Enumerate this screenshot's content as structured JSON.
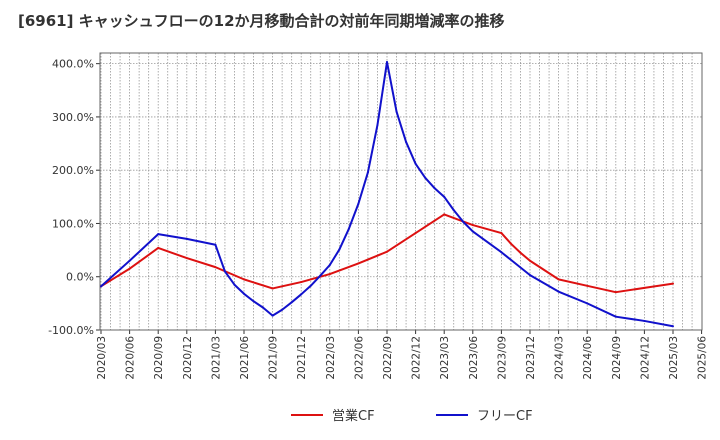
{
  "chart_data": {
    "type": "line",
    "title": "[6961]  キャッシュフローの12か月移動合計の対前年同期増減率の推移",
    "xlabel": "",
    "ylabel": "",
    "ylim": [
      -100,
      420
    ],
    "yticks": [
      -100,
      0,
      100,
      200,
      300,
      400
    ],
    "ytick_labels": [
      "-100.0%",
      "0.0%",
      "100.0%",
      "200.0%",
      "300.0%",
      "400.0%"
    ],
    "x_tick_labels": [
      "2020/03",
      "2020/06",
      "2020/09",
      "2020/12",
      "2021/03",
      "2021/06",
      "2021/09",
      "2021/12",
      "2022/03",
      "2022/06",
      "2022/09",
      "2022/12",
      "2023/03",
      "2023/06",
      "2023/09",
      "2023/12",
      "2024/03",
      "2024/06",
      "2024/09",
      "2024/12",
      "2025/03",
      "2025/06"
    ],
    "grid": true,
    "legend_position": "bottom",
    "series": [
      {
        "name": "営業CF",
        "color": "#dd1111",
        "points": [
          [
            "2020/03",
            -18
          ],
          [
            "2020/06",
            15
          ],
          [
            "2020/09",
            54
          ],
          [
            "2020/12",
            35
          ],
          [
            "2021/03",
            18
          ],
          [
            "2021/06",
            -5
          ],
          [
            "2021/09",
            -22
          ],
          [
            "2021/12",
            -10
          ],
          [
            "2022/03",
            5
          ],
          [
            "2022/06",
            25
          ],
          [
            "2022/09",
            47
          ],
          [
            "2022/12",
            82
          ],
          [
            "2023/03",
            117
          ],
          [
            "2023/06",
            97
          ],
          [
            "2023/09",
            82
          ],
          [
            "2023/10",
            62
          ],
          [
            "2023/11",
            45
          ],
          [
            "2023/12",
            30
          ],
          [
            "2024/03",
            -5
          ],
          [
            "2024/06",
            -17
          ],
          [
            "2024/09",
            -29
          ],
          [
            "2024/12",
            -21
          ],
          [
            "2025/03",
            -13
          ]
        ]
      },
      {
        "name": "フリーCF",
        "color": "#1111cc",
        "points": [
          [
            "2020/03",
            -18
          ],
          [
            "2020/06",
            30
          ],
          [
            "2020/09",
            80
          ],
          [
            "2020/12",
            71
          ],
          [
            "2021/03",
            60
          ],
          [
            "2021/04",
            10
          ],
          [
            "2021/05",
            -15
          ],
          [
            "2021/06",
            -32
          ],
          [
            "2021/07",
            -46
          ],
          [
            "2021/08",
            -58
          ],
          [
            "2021/09",
            -73
          ],
          [
            "2021/10",
            -62
          ],
          [
            "2021/11",
            -48
          ],
          [
            "2021/12",
            -33
          ],
          [
            "2022/01",
            -17
          ],
          [
            "2022/02",
            2
          ],
          [
            "2022/03",
            22
          ],
          [
            "2022/04",
            51
          ],
          [
            "2022/05",
            90
          ],
          [
            "2022/06",
            137
          ],
          [
            "2022/07",
            196
          ],
          [
            "2022/08",
            285
          ],
          [
            "2022/09",
            403
          ],
          [
            "2022/10",
            310
          ],
          [
            "2022/11",
            253
          ],
          [
            "2022/12",
            212
          ],
          [
            "2023/01",
            186
          ],
          [
            "2023/02",
            166
          ],
          [
            "2023/03",
            150
          ],
          [
            "2023/04",
            125
          ],
          [
            "2023/05",
            103
          ],
          [
            "2023/06",
            85
          ],
          [
            "2023/09",
            46
          ],
          [
            "2023/12",
            3
          ],
          [
            "2024/03",
            -28
          ],
          [
            "2024/06",
            -50
          ],
          [
            "2024/09",
            -75
          ],
          [
            "2024/12",
            -83
          ],
          [
            "2025/03",
            -93
          ]
        ]
      }
    ]
  }
}
